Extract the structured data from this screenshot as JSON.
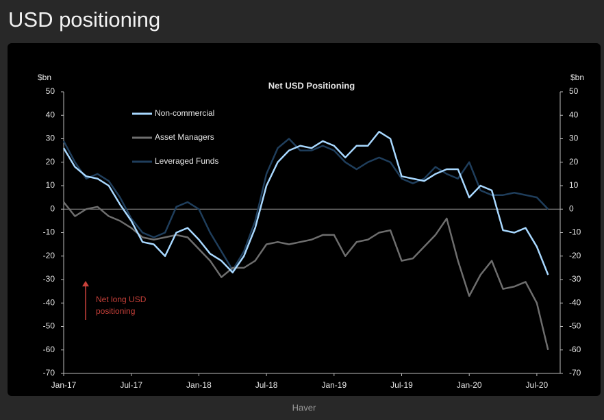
{
  "page": {
    "title": "USD positioning",
    "source": "Haver"
  },
  "chart_data": {
    "type": "line",
    "title": "Net USD Positioning",
    "y_label": "$bn",
    "y2_label": "$bn",
    "x": [
      "Jan-17",
      null,
      null,
      null,
      null,
      null,
      "Jul-17",
      null,
      null,
      null,
      null,
      null,
      "Jan-18",
      null,
      null,
      null,
      null,
      null,
      "Jul-18",
      null,
      null,
      null,
      null,
      null,
      "Jan-19",
      null,
      null,
      null,
      null,
      null,
      "Jul-19",
      null,
      null,
      null,
      null,
      null,
      "Jan-20",
      null,
      null,
      null,
      null,
      null,
      "Jul-20",
      null
    ],
    "series": [
      {
        "name": "Non-commercial",
        "color": "#a8d8ff",
        "values": [
          26,
          18,
          14,
          13,
          10,
          2,
          -5,
          -14,
          -15,
          -20,
          -10,
          -8,
          -13,
          -19,
          -22,
          -27,
          -20,
          -8,
          10,
          20,
          25,
          27,
          26,
          29,
          27,
          22,
          27,
          27,
          33,
          30,
          14,
          13,
          12,
          15,
          17,
          17,
          5,
          10,
          8,
          -9,
          -10,
          -8,
          -16,
          -28
        ]
      },
      {
        "name": "Asset Managers",
        "color": "#6e6e6e",
        "values": [
          3,
          -3,
          0,
          1,
          -3,
          -5,
          -8,
          -12,
          -13,
          -12,
          -11,
          -12,
          -17,
          -22,
          -29,
          -25,
          -25,
          -22,
          -15,
          -14,
          -15,
          -14,
          -13,
          -11,
          -11,
          -20,
          -14,
          -13,
          -10,
          -9,
          -22,
          -21,
          -16,
          -11,
          -4,
          -22,
          -37,
          -28,
          -22,
          -34,
          -33,
          -31,
          -40,
          -60
        ]
      },
      {
        "name": "Leveraged Funds",
        "color": "#1f3e5c",
        "values": [
          29,
          20,
          13,
          15,
          12,
          5,
          -4,
          -10,
          -12,
          -10,
          1,
          3,
          0,
          -10,
          -18,
          -26,
          -18,
          -5,
          15,
          26,
          30,
          25,
          25,
          27,
          25,
          20,
          17,
          20,
          22,
          20,
          13,
          11,
          13,
          18,
          15,
          13,
          20,
          8,
          6,
          6,
          7,
          6,
          5,
          0
        ]
      }
    ],
    "ylim": [
      -70,
      50
    ],
    "yticks": [
      -70,
      -60,
      -50,
      -40,
      -30,
      -20,
      -10,
      0,
      10,
      20,
      30,
      40,
      50
    ],
    "y2lim": [
      -70,
      50
    ],
    "y2ticks": [
      -70,
      -60,
      -50,
      -40,
      -30,
      -20,
      -10,
      0,
      10,
      20,
      30,
      40,
      50
    ],
    "zero_line": true,
    "legend": "upper-left",
    "annotation": {
      "lines": [
        "Net long USD",
        "positioning"
      ],
      "color": "#c9413a"
    }
  }
}
